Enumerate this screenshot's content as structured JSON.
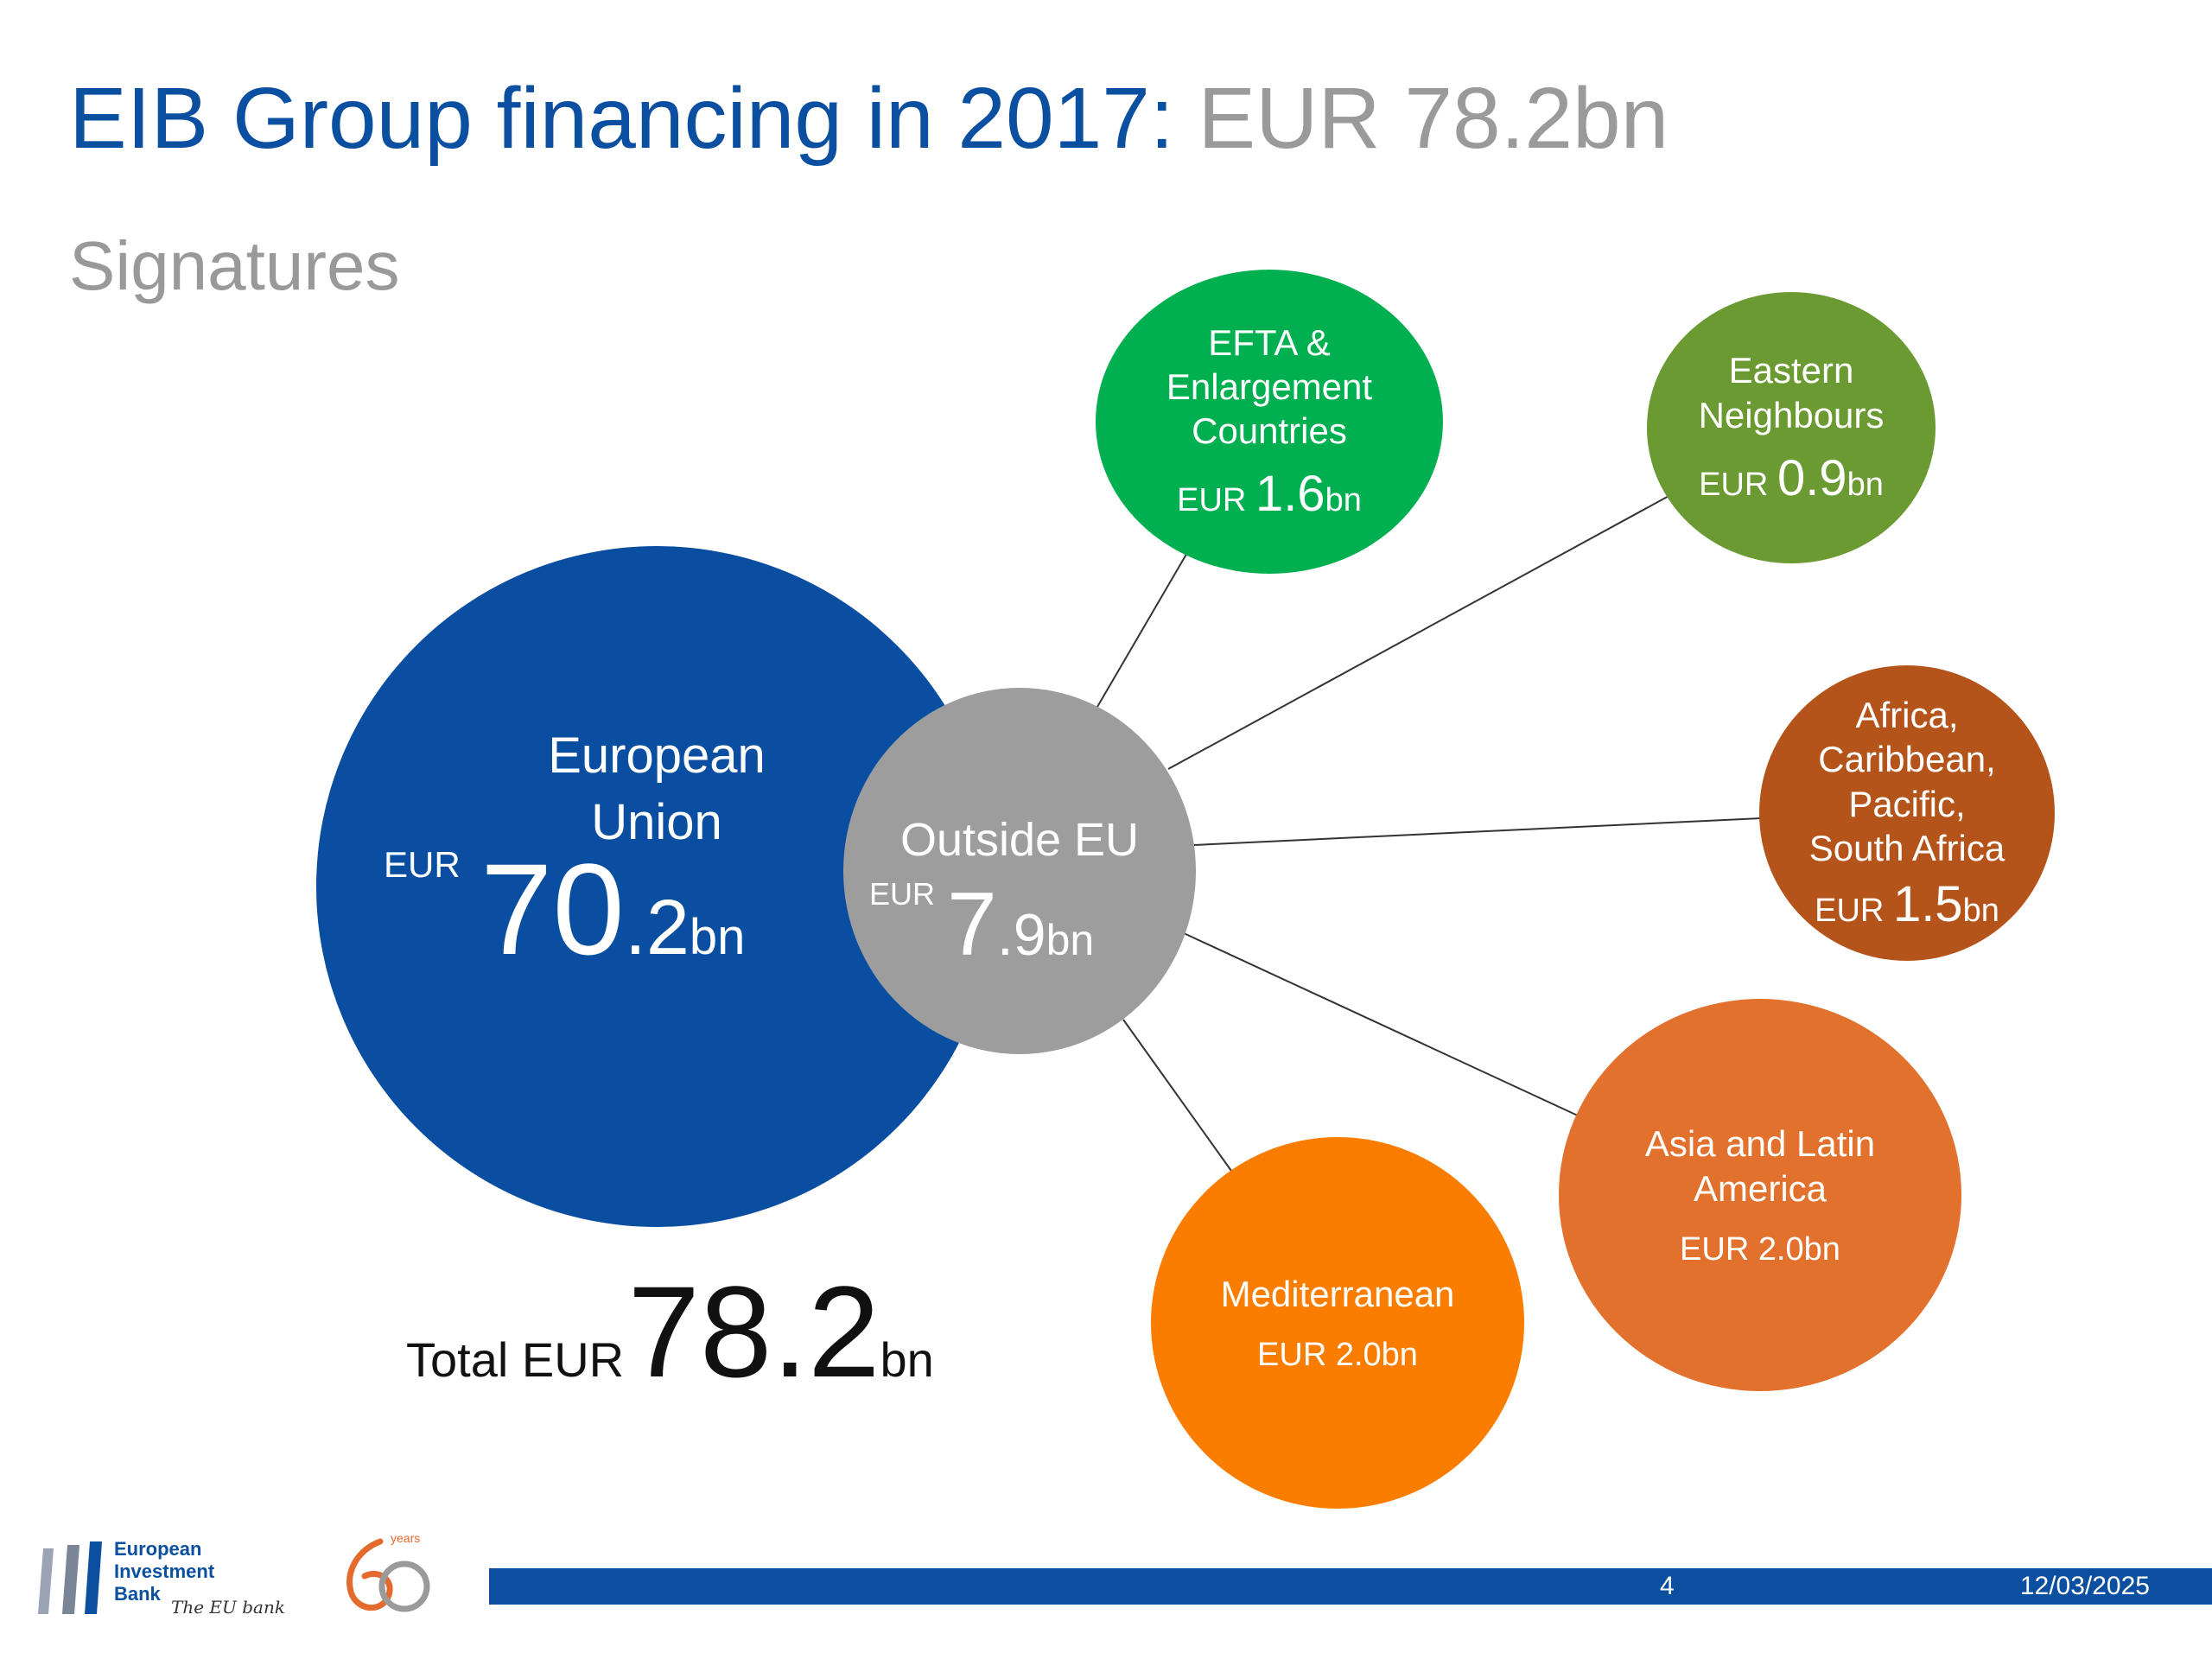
{
  "title": {
    "main": "EIB Group financing in 2017:",
    "amount": "EUR 78.2bn"
  },
  "subtitle": "Signatures",
  "eu": {
    "name_line1": "European",
    "name_line2": "Union",
    "currency": "EUR",
    "value_int": "70",
    "value_dec": ".2",
    "unit": "bn"
  },
  "outside": {
    "name": "Outside EU",
    "currency": "EUR",
    "value_int": "7",
    "value_dec": ".9",
    "unit": "bn"
  },
  "regions": [
    {
      "name_line1": "EFTA &",
      "name_line2": "Enlargement",
      "name_line3": "Countries",
      "currency": "EUR",
      "value": "1.6",
      "unit": "bn",
      "color": "#00b050"
    },
    {
      "name_line1": "Eastern",
      "name_line2": "Neighbours",
      "currency": "EUR",
      "value": "0.9",
      "unit": "bn",
      "color": "#6a9a31"
    },
    {
      "name_line1": "Africa,",
      "name_line2": "Caribbean,",
      "name_line3": "Pacific,",
      "name_line4": "South Africa",
      "currency": "EUR",
      "value": "1.5",
      "unit": "bn",
      "color": "#b5541a"
    },
    {
      "name_line1": "Asia and Latin",
      "name_line2": "America",
      "value_text": "EUR 2.0bn",
      "color": "#e2712d"
    },
    {
      "name_line1": "Mediterranean",
      "value_text": "EUR 2.0bn",
      "color": "#fb7d00"
    }
  ],
  "total": {
    "label": "Total EUR",
    "value": "78.2",
    "unit": "bn"
  },
  "footer": {
    "page": "4",
    "date": "12/03/2025"
  },
  "logo": {
    "line1": "European",
    "line2": "Investment",
    "line3": "Bank",
    "tagline": "The EU bank",
    "years_text": "years",
    "sixty": "60"
  },
  "colors": {
    "eib_blue": "#0b4fa1",
    "outside_grey": "#9d9d9d",
    "title_grey": "#9a9a9a"
  }
}
